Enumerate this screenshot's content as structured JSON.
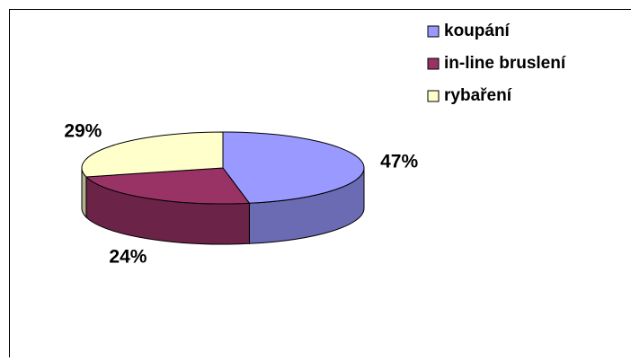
{
  "chart_data": {
    "type": "pie3d",
    "categories": [
      "koupání",
      "in-line bruslení",
      "rybaření"
    ],
    "values": [
      47,
      24,
      29
    ],
    "value_labels": [
      "47%",
      "24%",
      "29%"
    ],
    "colors": [
      "#9999FF",
      "#993366",
      "#FFFFCC"
    ],
    "legend": "top-right"
  }
}
